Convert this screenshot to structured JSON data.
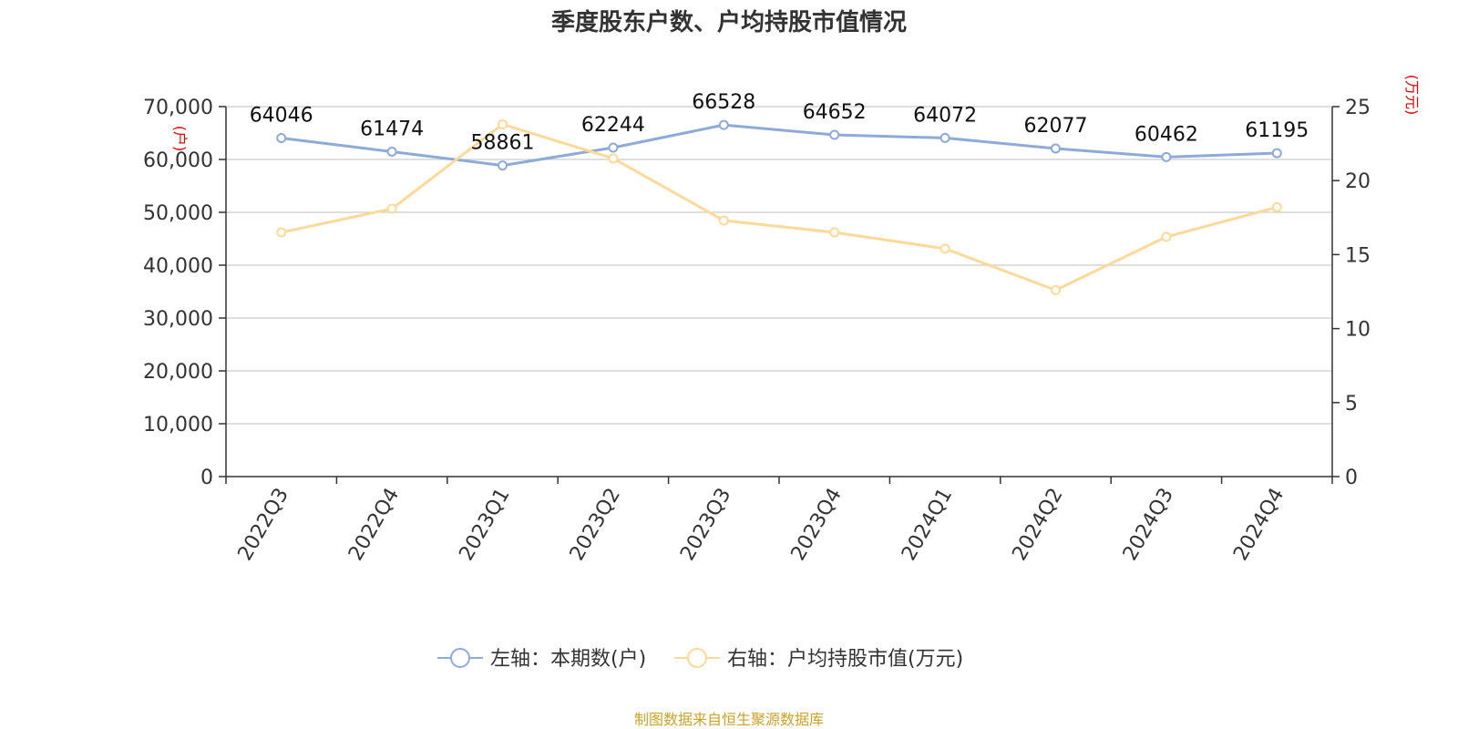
{
  "chart_data": {
    "type": "line",
    "title": "季度股东户数、户均持股市值情况",
    "categories": [
      "2022Q3",
      "2022Q4",
      "2023Q1",
      "2023Q2",
      "2023Q3",
      "2023Q4",
      "2024Q1",
      "2024Q2",
      "2024Q3",
      "2024Q4"
    ],
    "series": [
      {
        "name": "左轴：本期数(户)",
        "axis": "left",
        "color": "#8eaad8",
        "values": [
          64046,
          61474,
          58861,
          62244,
          66528,
          64652,
          64072,
          62077,
          60462,
          61195
        ],
        "show_labels": true
      },
      {
        "name": "右轴：户均持股市值(万元)",
        "axis": "right",
        "color": "#fcd998",
        "values": [
          16.5,
          18.1,
          23.8,
          21.5,
          17.3,
          16.5,
          15.4,
          12.6,
          16.2,
          18.2
        ],
        "show_labels": false
      }
    ],
    "y_left": {
      "unit_label": "(户)",
      "ylim": [
        0,
        70000
      ],
      "ticks": [
        0,
        10000,
        20000,
        30000,
        40000,
        50000,
        60000,
        70000
      ],
      "tick_labels": [
        "0",
        "10,000",
        "20,000",
        "30,000",
        "40,000",
        "50,000",
        "60,000",
        "70,000"
      ]
    },
    "y_right": {
      "unit_label": "(万元)",
      "ylim": [
        0,
        25
      ],
      "ticks": [
        0,
        5,
        10,
        15,
        20,
        25
      ],
      "tick_labels": [
        "0",
        "5",
        "10",
        "15",
        "20",
        "25"
      ]
    },
    "grid": true,
    "legend_position": "bottom-center",
    "source_note": "制图数据来自恒生聚源数据库"
  }
}
